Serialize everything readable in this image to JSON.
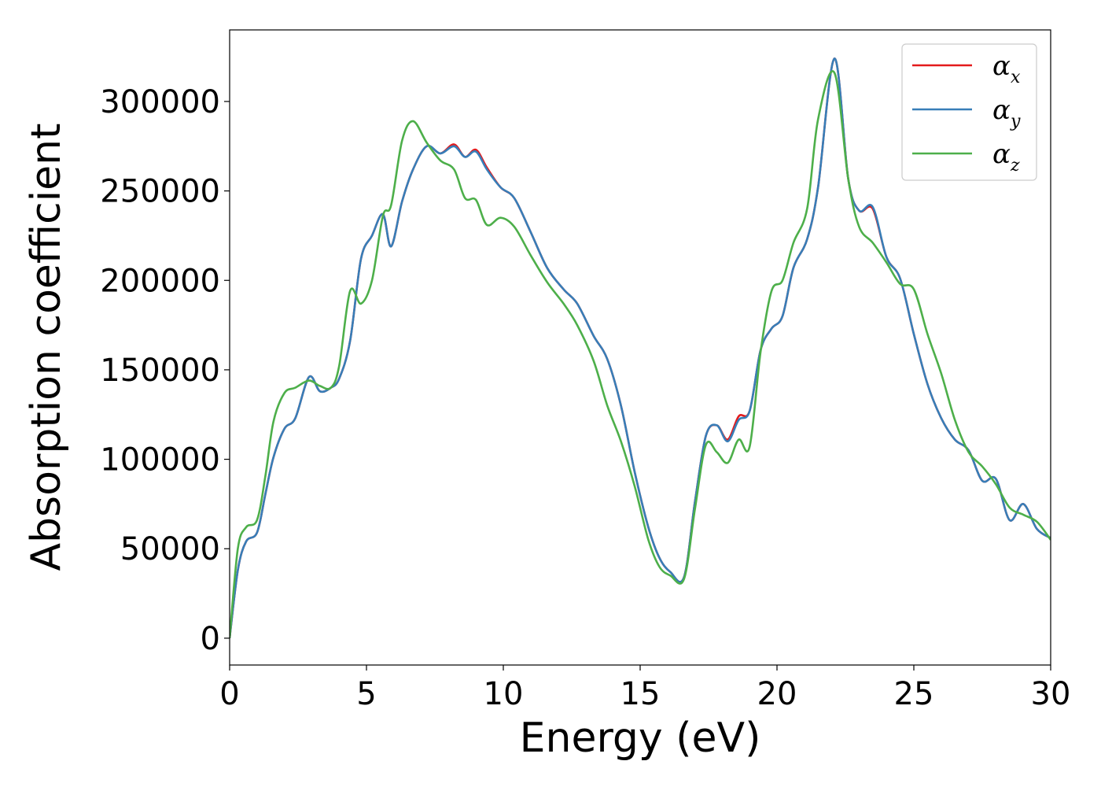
{
  "chart_data": {
    "type": "line",
    "title": "",
    "xlabel": "Energy (eV)",
    "ylabel": "Absorption coefficient",
    "xlim": [
      0,
      30
    ],
    "ylim": [
      -15000,
      340000
    ],
    "xticks": [
      0,
      5,
      10,
      15,
      20,
      25,
      30
    ],
    "xtick_labels": [
      "0",
      "5",
      "10",
      "15",
      "20",
      "25",
      "30"
    ],
    "yticks": [
      0,
      50000,
      100000,
      150000,
      200000,
      250000,
      300000
    ],
    "ytick_labels": [
      "0",
      "50000",
      "100000",
      "150000",
      "200000",
      "250000",
      "300000"
    ],
    "grid": false,
    "legend_position": "top-right",
    "x": [
      0,
      0.3,
      0.6,
      1.0,
      1.3,
      1.6,
      2.0,
      2.4,
      2.9,
      3.3,
      3.7,
      4.0,
      4.4,
      4.8,
      5.2,
      5.6,
      5.9,
      6.3,
      6.7,
      7.2,
      7.7,
      8.2,
      8.6,
      9.0,
      9.4,
      9.9,
      10.4,
      11.0,
      11.6,
      12.2,
      12.7,
      13.3,
      13.8,
      14.3,
      14.8,
      15.3,
      15.7,
      16.1,
      16.6,
      17.0,
      17.4,
      17.8,
      18.2,
      18.6,
      19.0,
      19.4,
      19.8,
      20.2,
      20.6,
      21.1,
      21.5,
      22.1,
      22.6,
      23.0,
      23.5,
      24.0,
      24.5,
      25.0,
      25.5,
      26.0,
      26.5,
      27.0,
      27.5,
      28.0,
      28.5,
      29.0,
      29.5,
      30.0
    ],
    "series": [
      {
        "name": "α_x",
        "color": "#e41a1c",
        "values": [
          0,
          38000,
          54000,
          59000,
          80000,
          101000,
          117000,
          123000,
          146000,
          138000,
          140000,
          145000,
          166000,
          212000,
          225000,
          237000,
          219000,
          244000,
          262000,
          275000,
          271000,
          276000,
          269000,
          273000,
          263000,
          252000,
          246000,
          227000,
          207000,
          195000,
          187000,
          169000,
          156000,
          130000,
          93000,
          62000,
          45000,
          37000,
          34000,
          76000,
          113000,
          119000,
          111000,
          124000,
          127000,
          161000,
          173000,
          180000,
          207000,
          223000,
          252000,
          324000,
          257000,
          239000,
          240000,
          213000,
          201000,
          170000,
          142000,
          123000,
          111000,
          105000,
          88000,
          89000,
          66000,
          75000,
          61000,
          56000
        ]
      },
      {
        "name": "α_y",
        "color": "#377eb8",
        "values": [
          0,
          38000,
          54000,
          59000,
          80000,
          101000,
          117000,
          123000,
          146000,
          138000,
          140000,
          145000,
          166000,
          212000,
          225000,
          237000,
          219000,
          244000,
          262000,
          275000,
          271000,
          275000,
          269000,
          272000,
          262000,
          252000,
          246000,
          227000,
          207000,
          195000,
          187000,
          169000,
          156000,
          130000,
          93000,
          62000,
          45000,
          37000,
          34000,
          76000,
          113000,
          119000,
          110000,
          122000,
          127000,
          161000,
          173000,
          180000,
          207000,
          223000,
          252000,
          324000,
          257000,
          239000,
          241000,
          213000,
          201000,
          170000,
          142000,
          123000,
          111000,
          105000,
          88000,
          89000,
          66000,
          75000,
          61000,
          56000
        ]
      },
      {
        "name": "α_z",
        "color": "#4daf4a",
        "values": [
          0,
          50000,
          62000,
          66000,
          90000,
          121000,
          137000,
          140000,
          144000,
          141000,
          140000,
          152000,
          194000,
          187000,
          200000,
          236000,
          242000,
          278000,
          289000,
          277000,
          267000,
          262000,
          246000,
          245000,
          231000,
          235000,
          230000,
          214000,
          199000,
          187000,
          175000,
          155000,
          130000,
          110000,
          85000,
          55000,
          40000,
          35000,
          33000,
          72000,
          108000,
          104000,
          98000,
          111000,
          107000,
          160000,
          194000,
          200000,
          221000,
          240000,
          290000,
          316000,
          257000,
          230000,
          221000,
          210000,
          198000,
          195000,
          170000,
          148000,
          122000,
          104000,
          96000,
          86000,
          73000,
          69000,
          65000,
          55000
        ]
      }
    ]
  }
}
